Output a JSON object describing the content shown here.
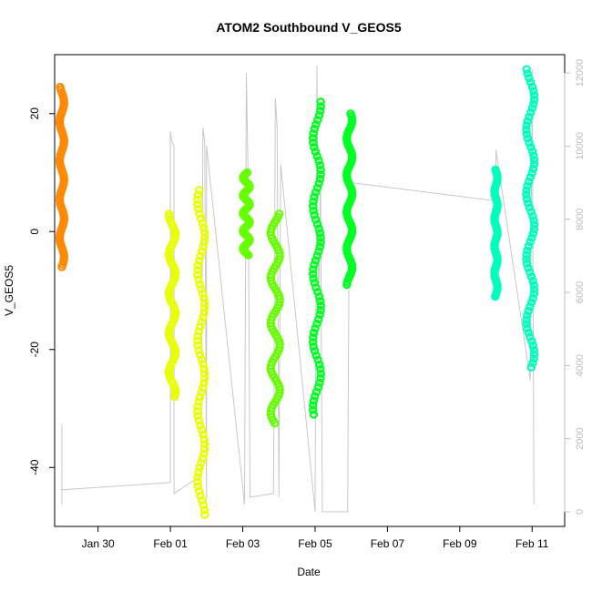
{
  "chart_data": {
    "type": "scatter",
    "title": "ATOM2 Southbound V_GEOS5",
    "xlabel": "Date",
    "ylabel": "V_GEOS5",
    "x_tick_labels": [
      "Jan 30",
      "Feb 01",
      "Feb 03",
      "Feb 05",
      "Feb 07",
      "Feb 09",
      "Feb 11"
    ],
    "x_ticks_day": [
      0,
      2,
      4,
      6,
      8,
      10,
      12
    ],
    "xlim_day": [
      -1.2,
      12.9
    ],
    "ylim": [
      -50,
      30
    ],
    "y_ticks": [
      -40,
      -20,
      0,
      20
    ],
    "y2_label": "",
    "y2_ticks": [
      0,
      2000,
      4000,
      6000,
      8000,
      10000,
      12000
    ],
    "y2lim": [
      -400,
      12500
    ],
    "grid": false,
    "legend": "none",
    "colors": {
      "altitude_line": "#c8c8c8",
      "orange": "#ff8800",
      "yellow": "#e8ff00",
      "lime": "#66ff00",
      "green": "#00ff22",
      "teal": "#00ffbb"
    },
    "series": [
      {
        "color": "orange",
        "x_day": -1.0,
        "width": 0.12,
        "vmin": -6,
        "vmax": 24.5
      },
      {
        "color": "yellow",
        "x_day": 2.05,
        "width": 0.18,
        "vmin": -28,
        "vmax": 3
      },
      {
        "color": "yellow",
        "x_day": 2.85,
        "width": 0.2,
        "vmin": -48,
        "vmax": 7
      },
      {
        "color": "lime",
        "x_day": 4.1,
        "width": 0.18,
        "vmin": -4,
        "vmax": 10
      },
      {
        "color": "lime",
        "x_day": 4.9,
        "width": 0.25,
        "vmin": -32.5,
        "vmax": 3
      },
      {
        "color": "green",
        "x_day": 6.05,
        "width": 0.22,
        "vmin": -31,
        "vmax": 22
      },
      {
        "color": "green",
        "x_day": 6.95,
        "width": 0.15,
        "vmin": -9,
        "vmax": 20
      },
      {
        "color": "teal",
        "x_day": 11.0,
        "width": 0.08,
        "vmin": -11,
        "vmax": 10.5
      },
      {
        "color": "teal",
        "x_day": 11.95,
        "width": 0.22,
        "vmin": -23,
        "vmax": 27.5
      }
    ],
    "altitude_line": {
      "x_day": [
        -1.0,
        -1.0,
        -1.0,
        2.0,
        2.0,
        2.05,
        2.1,
        2.1,
        2.85,
        2.9,
        2.95,
        3.0,
        3.0,
        4.05,
        4.1,
        4.15,
        4.2,
        4.2,
        4.85,
        4.9,
        4.95,
        5.0,
        5.05,
        6.0,
        6.05,
        6.1,
        6.15,
        6.2,
        6.9,
        6.95,
        7.0,
        11.0,
        11.0,
        11.95,
        12.0,
        12.05
      ],
      "alt": [
        200,
        2400,
        600,
        800,
        10400,
        10100,
        10000,
        500,
        1000,
        10500,
        10100,
        300,
        10000,
        200,
        12000,
        9000,
        500,
        400,
        500,
        11300,
        10500,
        400,
        9500,
        0,
        12200,
        5500,
        9300,
        0,
        0,
        9500,
        9000,
        8500,
        9900,
        3600,
        12100,
        200
      ]
    }
  }
}
